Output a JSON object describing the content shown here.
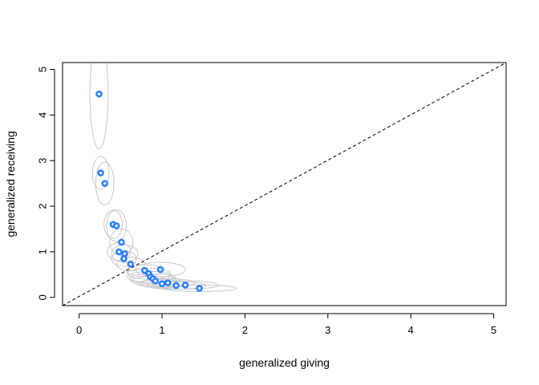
{
  "chart_data": {
    "type": "scatter",
    "title": "",
    "xlabel": "generalized giving",
    "ylabel": "generalized receiving",
    "xlim": [
      -0.2,
      5.15
    ],
    "ylim": [
      -0.18,
      5.15
    ],
    "xticks": [
      0,
      1,
      2,
      3,
      4,
      5
    ],
    "yticks": [
      0,
      1,
      2,
      3,
      4,
      5
    ],
    "grid": false,
    "legend": "none",
    "reference_line": {
      "from": [
        -0.2,
        -0.18
      ],
      "to": [
        5.15,
        5.15
      ],
      "style": "dashed"
    },
    "colors": {
      "points": "#2a7fff",
      "ellipses": "#c9c9c9",
      "line": "#000000"
    },
    "points": [
      {
        "x": 0.24,
        "y": 4.46
      },
      {
        "x": 0.26,
        "y": 2.73
      },
      {
        "x": 0.31,
        "y": 2.5
      },
      {
        "x": 0.41,
        "y": 1.6
      },
      {
        "x": 0.45,
        "y": 1.57
      },
      {
        "x": 0.51,
        "y": 1.21
      },
      {
        "x": 0.48,
        "y": 1.0
      },
      {
        "x": 0.55,
        "y": 0.96
      },
      {
        "x": 0.54,
        "y": 0.85
      },
      {
        "x": 0.62,
        "y": 0.73
      },
      {
        "x": 0.79,
        "y": 0.59
      },
      {
        "x": 0.98,
        "y": 0.61
      },
      {
        "x": 0.84,
        "y": 0.52
      },
      {
        "x": 0.86,
        "y": 0.45
      },
      {
        "x": 0.89,
        "y": 0.41
      },
      {
        "x": 0.92,
        "y": 0.36
      },
      {
        "x": 1.0,
        "y": 0.3
      },
      {
        "x": 1.07,
        "y": 0.32
      },
      {
        "x": 1.17,
        "y": 0.26
      },
      {
        "x": 1.28,
        "y": 0.27
      },
      {
        "x": 1.45,
        "y": 0.2
      }
    ],
    "ellipses": [
      {
        "cx": 0.24,
        "cy": 4.46,
        "rx": 0.11,
        "ry": 1.2
      },
      {
        "cx": 0.26,
        "cy": 2.73,
        "rx": 0.1,
        "ry": 0.36
      },
      {
        "cx": 0.31,
        "cy": 2.5,
        "rx": 0.11,
        "ry": 0.47
      },
      {
        "cx": 0.41,
        "cy": 1.6,
        "rx": 0.11,
        "ry": 0.31
      },
      {
        "cx": 0.45,
        "cy": 1.57,
        "rx": 0.12,
        "ry": 0.35
      },
      {
        "cx": 0.51,
        "cy": 1.21,
        "rx": 0.14,
        "ry": 0.29
      },
      {
        "cx": 0.48,
        "cy": 1.0,
        "rx": 0.14,
        "ry": 0.2
      },
      {
        "cx": 0.55,
        "cy": 0.96,
        "rx": 0.16,
        "ry": 0.19
      },
      {
        "cx": 0.54,
        "cy": 0.85,
        "rx": 0.15,
        "ry": 0.17
      },
      {
        "cx": 0.62,
        "cy": 0.73,
        "rx": 0.17,
        "ry": 0.15
      },
      {
        "cx": 0.79,
        "cy": 0.59,
        "rx": 0.22,
        "ry": 0.13
      },
      {
        "cx": 0.98,
        "cy": 0.61,
        "rx": 0.3,
        "ry": 0.16
      },
      {
        "cx": 0.84,
        "cy": 0.52,
        "rx": 0.26,
        "ry": 0.12
      },
      {
        "cx": 0.86,
        "cy": 0.45,
        "rx": 0.28,
        "ry": 0.12
      },
      {
        "cx": 0.89,
        "cy": 0.41,
        "rx": 0.28,
        "ry": 0.11
      },
      {
        "cx": 0.92,
        "cy": 0.36,
        "rx": 0.3,
        "ry": 0.1
      },
      {
        "cx": 1.0,
        "cy": 0.3,
        "rx": 0.3,
        "ry": 0.09
      },
      {
        "cx": 1.07,
        "cy": 0.32,
        "rx": 0.33,
        "ry": 0.09
      },
      {
        "cx": 1.17,
        "cy": 0.26,
        "rx": 0.36,
        "ry": 0.08
      },
      {
        "cx": 1.28,
        "cy": 0.27,
        "rx": 0.4,
        "ry": 0.09
      },
      {
        "cx": 1.45,
        "cy": 0.2,
        "rx": 0.45,
        "ry": 0.07
      }
    ]
  }
}
